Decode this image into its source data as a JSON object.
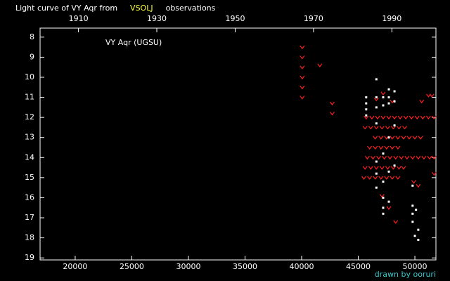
{
  "chart_data": {
    "type": "scatter",
    "title_parts": [
      "Light curve of VY Aqr from",
      "VSOLJ",
      "observations"
    ],
    "title_colors": [
      "#ffffff",
      "#ffff33",
      "#ffffff"
    ],
    "annotation": "VY Aqr (UGSU)",
    "credit": "drawn by ooruri",
    "credit_color": "#33cccc",
    "background": "#000000",
    "axis_color": "#ffffff",
    "xlim": [
      16900,
      51860
    ],
    "xticks": [
      20000,
      25000,
      30000,
      35000,
      40000,
      45000,
      50000
    ],
    "x2lim": [
      1900.2,
      2001.25
    ],
    "x2ticks": [
      1910,
      1930,
      1950,
      1970,
      1990
    ],
    "ylim": [
      7.55,
      19.1
    ],
    "y_inverted": true,
    "yticks": [
      8,
      9,
      10,
      11,
      12,
      13,
      14,
      15,
      16,
      17,
      18,
      19
    ],
    "series": [
      {
        "color": "#ff2020",
        "marker": "v",
        "x": [
          40050,
          40050,
          40050,
          40050,
          40050,
          40050,
          41600,
          42700,
          42700,
          45700,
          46200,
          46700,
          47200,
          47700,
          48200,
          48700,
          49200,
          49700,
          50200,
          50700,
          51200,
          51700,
          45600,
          46100,
          46600,
          47100,
          47600,
          48100,
          48600,
          49100,
          46500,
          47000,
          47500,
          48000,
          48500,
          49000,
          49500,
          50000,
          50500,
          46000,
          46500,
          47000,
          47500,
          48000,
          48500,
          45800,
          46300,
          46800,
          47300,
          47800,
          48300,
          48800,
          49300,
          49800,
          50300,
          50800,
          51300,
          51700,
          45600,
          46100,
          46600,
          47100,
          47600,
          48100,
          48600,
          49000,
          45500,
          46000,
          46500,
          47000,
          47500,
          48000,
          48500,
          47100,
          47700,
          48300,
          50300,
          51200,
          51500,
          46600,
          47200,
          48000,
          50600,
          51700,
          49900
        ],
        "values": [
          8.5,
          9,
          9.5,
          10,
          10.5,
          11,
          9.4,
          11.3,
          11.8,
          12,
          12,
          12,
          12,
          12,
          12,
          12,
          12,
          12,
          12,
          12,
          12,
          12,
          12.5,
          12.5,
          12.5,
          12.5,
          12.5,
          12.5,
          12.5,
          12.5,
          13,
          13,
          13,
          13,
          13,
          13,
          13,
          13,
          13,
          13.5,
          13.5,
          13.5,
          13.5,
          13.5,
          13.5,
          14,
          14,
          14,
          14,
          14,
          14,
          14,
          14,
          14,
          14,
          14,
          14,
          14,
          14.5,
          14.5,
          14.5,
          14.5,
          14.5,
          14.5,
          14.5,
          14.5,
          15,
          15,
          15,
          15,
          15,
          15,
          15,
          15.9,
          16.5,
          17.2,
          15.4,
          10.9,
          10.9,
          11.1,
          10.8,
          11.2,
          11.2,
          14.8,
          15.2
        ]
      },
      {
        "color": "#ffffff",
        "marker": "dot",
        "x": [
          45700,
          45700,
          45700,
          45700,
          46600,
          46600,
          46600,
          46600,
          46600,
          46600,
          46600,
          47200,
          47200,
          47200,
          47200,
          47200,
          47200,
          47200,
          47700,
          47700,
          47700,
          47700,
          47700,
          47700,
          48200,
          48200,
          48200,
          48200,
          49800,
          49800,
          49800,
          49800,
          50000,
          50300,
          50300,
          50100
        ],
        "values": [
          11,
          11.3,
          11.6,
          11.9,
          10.1,
          11,
          11.5,
          12.3,
          14.2,
          14.8,
          15.5,
          11,
          11.4,
          13.8,
          15.2,
          16,
          16.5,
          16.8,
          10.6,
          11,
          11.3,
          13,
          14.7,
          16.2,
          10.7,
          11.2,
          12.4,
          14.4,
          15.4,
          16.4,
          16.8,
          17.2,
          17.9,
          17.6,
          18.1,
          16.6
        ]
      }
    ]
  }
}
